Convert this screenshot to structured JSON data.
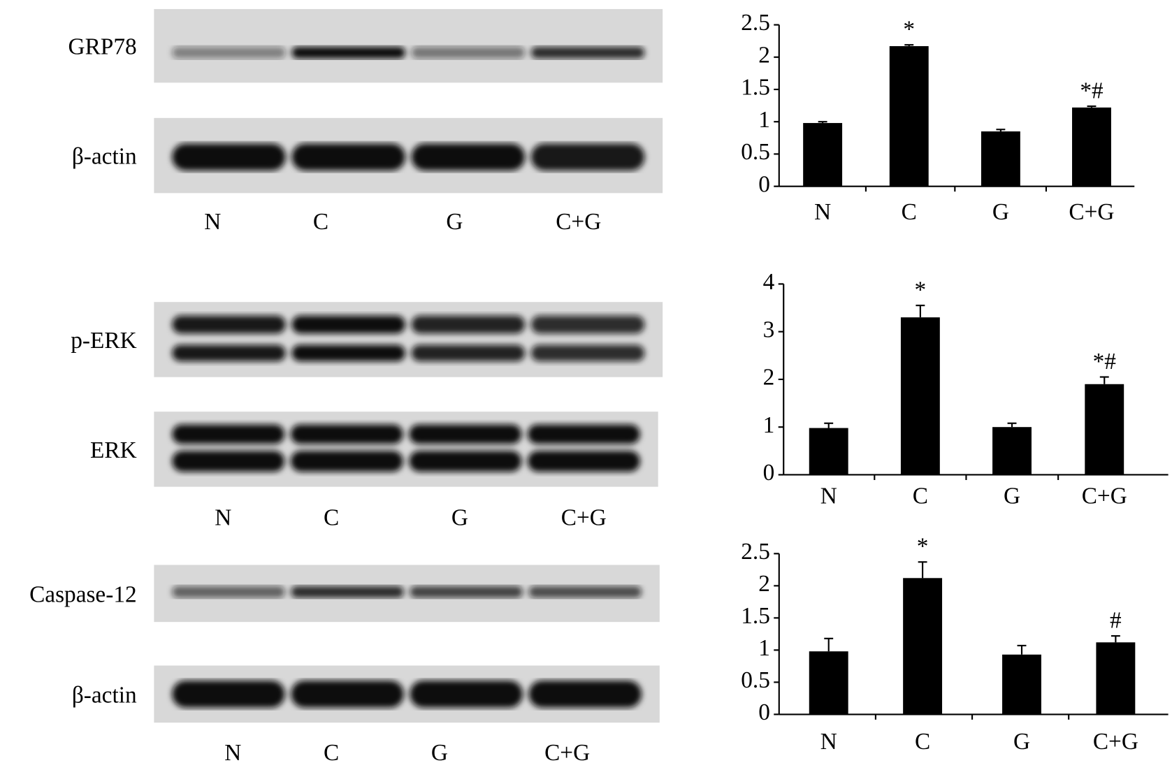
{
  "blots": [
    {
      "rows": [
        "GRP78",
        "β-actin"
      ],
      "lanes": [
        "N",
        "C",
        "G",
        "C+G"
      ]
    },
    {
      "rows": [
        "p-ERK",
        "ERK"
      ],
      "lanes": [
        "N",
        "C",
        "G",
        "C+G"
      ]
    },
    {
      "rows": [
        "Caspase-12",
        "β-actin"
      ],
      "lanes": [
        "N",
        "C",
        "G",
        "C+G"
      ]
    }
  ],
  "chart_data": [
    {
      "type": "bar",
      "categories": [
        "N",
        "C",
        "G",
        "C+G"
      ],
      "values": [
        0.98,
        2.17,
        0.85,
        1.22
      ],
      "errors": [
        0.02,
        0.02,
        0.03,
        0.02
      ],
      "annotations": [
        null,
        "*",
        null,
        "*#"
      ],
      "color": "#000000",
      "ylim": [
        0,
        2.5
      ],
      "yticks": [
        0,
        0.5,
        1,
        1.5,
        2,
        2.5
      ],
      "grid": false
    },
    {
      "type": "bar",
      "categories": [
        "N",
        "C",
        "G",
        "C+G"
      ],
      "values": [
        0.98,
        3.3,
        1.0,
        1.9
      ],
      "errors": [
        0.1,
        0.25,
        0.08,
        0.15
      ],
      "annotations": [
        null,
        "*",
        null,
        "*#"
      ],
      "color": "#000000",
      "ylim": [
        0,
        4
      ],
      "yticks": [
        0,
        1,
        2,
        3,
        4
      ],
      "grid": false
    },
    {
      "type": "bar",
      "categories": [
        "N",
        "C",
        "G",
        "C+G"
      ],
      "values": [
        0.98,
        2.12,
        0.93,
        1.12
      ],
      "errors": [
        0.2,
        0.25,
        0.14,
        0.1
      ],
      "annotations": [
        null,
        "*",
        null,
        "#"
      ],
      "color": "#000000",
      "ylim": [
        0,
        2.5
      ],
      "yticks": [
        0,
        0.5,
        1,
        1.5,
        2,
        2.5
      ],
      "grid": false
    }
  ]
}
